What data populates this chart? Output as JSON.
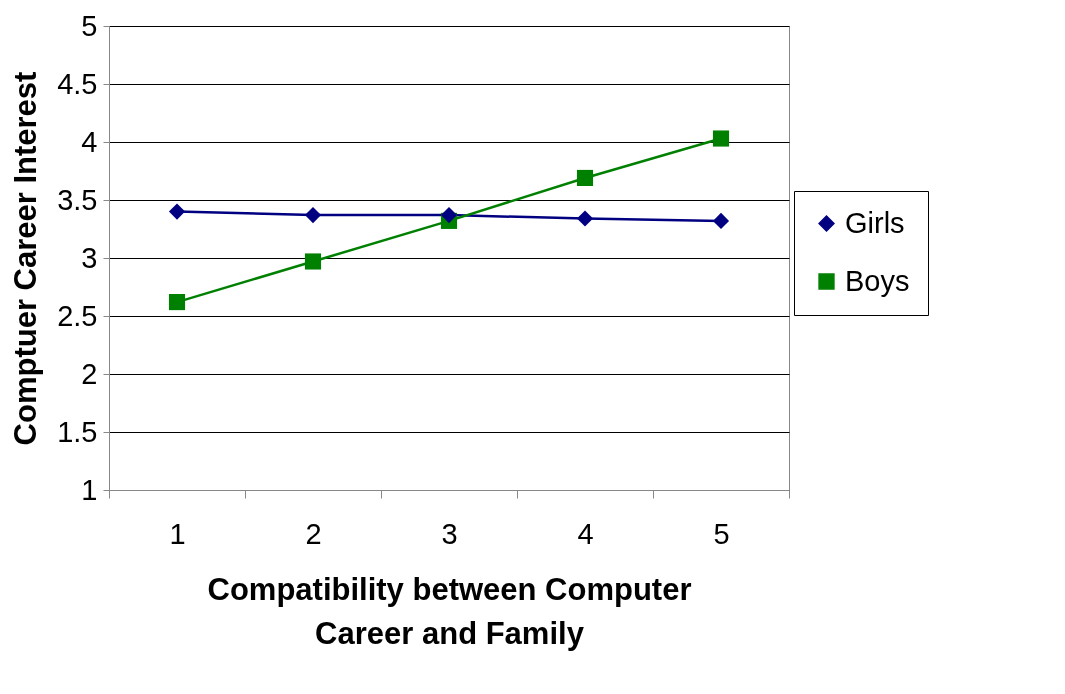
{
  "chart_data": {
    "type": "line",
    "xlabel": "Compatibility between Computer Career and Family",
    "ylabel": "Comptuer Career Interest",
    "categories": [
      "1",
      "2",
      "3",
      "4",
      "5"
    ],
    "series": [
      {
        "name": "Girls",
        "color": "#000080",
        "marker": "diamond",
        "values": [
          3.4,
          3.37,
          3.37,
          3.34,
          3.32
        ]
      },
      {
        "name": "Boys",
        "color": "#008000",
        "marker": "square",
        "values": [
          2.62,
          2.97,
          3.32,
          3.69,
          4.03
        ]
      }
    ],
    "ylim": [
      1,
      5
    ],
    "yticks": [
      1,
      1.5,
      2,
      2.5,
      3,
      3.5,
      4,
      4.5,
      5
    ],
    "grid": "y",
    "legend": "right",
    "line_style": "solid"
  }
}
